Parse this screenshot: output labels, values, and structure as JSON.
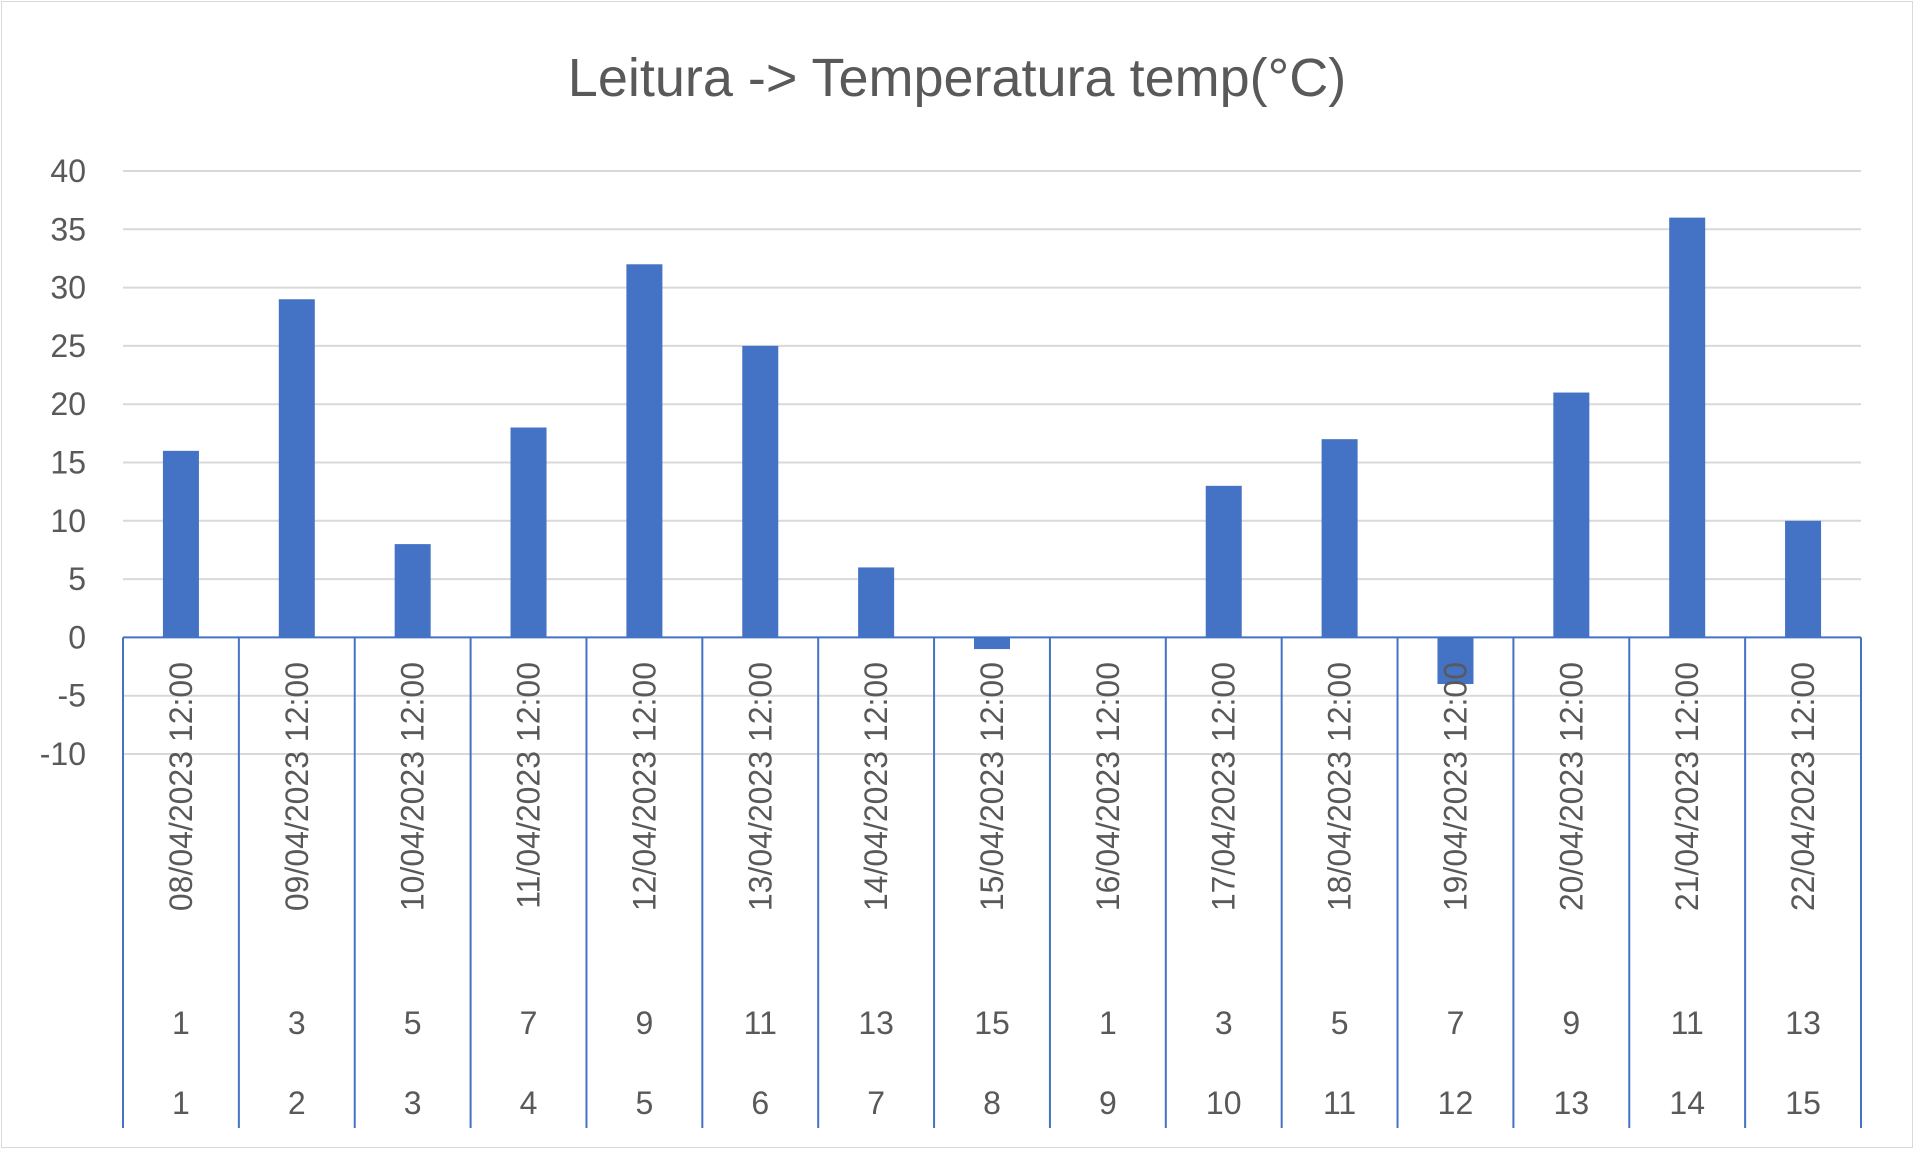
{
  "chart_data": {
    "type": "bar",
    "title": "Leitura -> Temperatura temp(°C)",
    "xlabel": "",
    "ylabel": "",
    "ylim": [
      -10,
      40
    ],
    "yticks": [
      "40",
      "35",
      "30",
      "25",
      "20",
      "15",
      "10",
      "5",
      "0",
      "-5",
      "-10"
    ],
    "grid": true,
    "legend": "none",
    "bar_color": "#4472c4",
    "axis_color": "#4472c4",
    "grid_color": "#d9d9d9",
    "categories": [
      "08/04/2023 12:00",
      "09/04/2023 12:00",
      "10/04/2023 12:00",
      "11/04/2023 12:00",
      "12/04/2023 12:00",
      "13/04/2023 12:00",
      "14/04/2023 12:00",
      "15/04/2023 12:00",
      "16/04/2023 12:00",
      "17/04/2023 12:00",
      "18/04/2023 12:00",
      "19/04/2023 12:00",
      "20/04/2023 12:00",
      "21/04/2023 12:00",
      "22/04/2023 12:00"
    ],
    "category_level2": [
      "1",
      "3",
      "5",
      "7",
      "9",
      "11",
      "13",
      "15",
      "1",
      "3",
      "5",
      "7",
      "9",
      "11",
      "13"
    ],
    "category_level3": [
      "1",
      "2",
      "3",
      "4",
      "5",
      "6",
      "7",
      "8",
      "9",
      "10",
      "11",
      "12",
      "13",
      "14",
      "15"
    ],
    "values": [
      16,
      29,
      8,
      18,
      32,
      25,
      6,
      -1,
      0,
      13,
      17,
      -4,
      21,
      36,
      10
    ]
  }
}
